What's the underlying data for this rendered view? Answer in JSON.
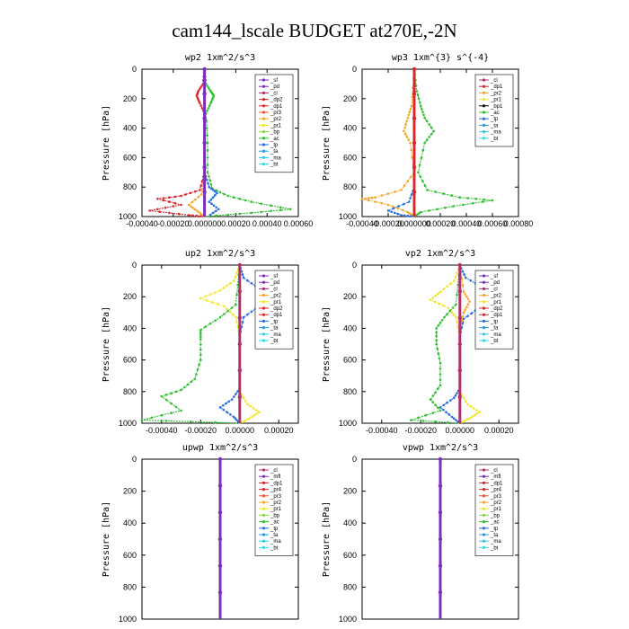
{
  "figure_title": "cam144_lscale  BUDGET at270E,-2N",
  "colors": {
    "sf": "#7b2fbe",
    "pd": "#7b2fbe",
    "cl": "#b0306c",
    "dp2": "#d8282e",
    "dp1": "#d8282e",
    "pr3": "#e8543a",
    "pr2": "#f7a62c",
    "pr1": "#f0e52a",
    "bp": "#8cd44a",
    "ac": "#2ec02e",
    "tp": "#2a6ee0",
    "ta": "#2a9ae0",
    "ma": "#30c8e8",
    "bt": "#30d8e8",
    "mfl": "#7b2fbe",
    "pr4": "#d8282e"
  },
  "chart_data": [
    {
      "id": "wp2",
      "type": "line",
      "title": "wp2  1xm^2/s^3",
      "ylabel": "Pressure [hPa]",
      "ylim": [
        1000,
        0
      ],
      "yticks": [
        0,
        200,
        400,
        600,
        800,
        1000
      ],
      "xlim": [
        -0.0004,
        0.0006
      ],
      "xticks": [
        -0.0004,
        -0.0002,
        0.0,
        0.0002,
        0.0004,
        0.0006
      ],
      "xticklabels": [
        "-0.00040",
        "-0.00020",
        "0.000000",
        "0.00020",
        "0.00040",
        "0.00060"
      ],
      "legend": [
        "sf",
        "pd",
        "cl",
        "dp2",
        "dp1",
        "pr3",
        "pr2",
        "pr1",
        "bp",
        "ac",
        "tp",
        "ta",
        "ma",
        "bt"
      ],
      "series": [
        {
          "key": "ac",
          "points": [
            [
              0,
              0
            ],
            [
              1e-05,
              100
            ],
            [
              4e-05,
              150
            ],
            [
              6e-05,
              180
            ],
            [
              4e-05,
              230
            ],
            [
              1e-05,
              300
            ],
            [
              2e-05,
              500
            ],
            [
              2e-05,
              700
            ],
            [
              5e-05,
              810
            ],
            [
              0.00015,
              860
            ],
            [
              0.0003,
              900
            ],
            [
              0.00055,
              950
            ],
            [
              0.0003,
              975
            ],
            [
              0,
              1000
            ]
          ]
        },
        {
          "key": "dp1",
          "points": [
            [
              0,
              0
            ],
            [
              -1e-05,
              100
            ],
            [
              -4e-05,
              150
            ],
            [
              -5e-05,
              180
            ],
            [
              -3e-05,
              230
            ],
            [
              0,
              300
            ],
            [
              0,
              700
            ],
            [
              -3e-05,
              820
            ],
            [
              -0.00015,
              860
            ],
            [
              -0.0003,
              880
            ],
            [
              -0.00015,
              920
            ],
            [
              -0.00035,
              960
            ],
            [
              -0.0001,
              990
            ],
            [
              0,
              1000
            ]
          ]
        },
        {
          "key": "pr2",
          "points": [
            [
              0,
              0
            ],
            [
              0,
              700
            ],
            [
              -2e-05,
              850
            ],
            [
              -0.0001,
              920
            ],
            [
              -5e-05,
              960
            ],
            [
              0,
              1000
            ]
          ]
        },
        {
          "key": "tp",
          "points": [
            [
              0,
              0
            ],
            [
              0,
              700
            ],
            [
              3e-05,
              800
            ],
            [
              8e-05,
              840
            ],
            [
              3e-05,
              900
            ],
            [
              9e-05,
              950
            ],
            [
              2e-05,
              1000
            ]
          ]
        },
        {
          "key": "sf",
          "points": [
            [
              0,
              0
            ],
            [
              0,
              1000
            ]
          ],
          "thick": true
        }
      ]
    },
    {
      "id": "wp3",
      "type": "line",
      "title": "wp3  1xm^{3} s^{-4}",
      "ylabel": "Pressure [hPa]",
      "ylim": [
        1000,
        0
      ],
      "yticks": [
        0,
        200,
        400,
        600,
        800,
        1000
      ],
      "xlim": [
        -0.0004,
        0.0008
      ],
      "xticks": [
        -0.0004,
        -0.0002,
        0.0,
        0.0002,
        0.0004,
        0.0006,
        0.0008
      ],
      "xticklabels": [
        "-0.00040",
        "-0.00020",
        "0.000000",
        "0.00020",
        "0.00040",
        "0.00060",
        "0.00080"
      ],
      "legend": [
        "cl",
        "dp1",
        "pr2",
        "pr1",
        "bp1",
        "ac",
        "tp",
        "ta",
        "ma",
        "bt"
      ],
      "series": [
        {
          "key": "ac",
          "points": [
            [
              0,
              0
            ],
            [
              2e-05,
              150
            ],
            [
              5e-05,
              250
            ],
            [
              8e-05,
              330
            ],
            [
              0.00015,
              420
            ],
            [
              8e-05,
              500
            ],
            [
              3e-05,
              700
            ],
            [
              0.0001,
              820
            ],
            [
              0.00035,
              870
            ],
            [
              0.0006,
              890
            ],
            [
              0.0003,
              930
            ],
            [
              5e-05,
              970
            ],
            [
              0,
              1000
            ]
          ]
        },
        {
          "key": "pr2",
          "points": [
            [
              0,
              0
            ],
            [
              -2e-05,
              250
            ],
            [
              -5e-05,
              330
            ],
            [
              -8e-05,
              420
            ],
            [
              -3e-05,
              500
            ],
            [
              0,
              700
            ],
            [
              -0.0001,
              820
            ],
            [
              -0.0003,
              870
            ],
            [
              -0.0004,
              880
            ],
            [
              -0.0002,
              920
            ],
            [
              -5e-05,
              970
            ],
            [
              0,
              1000
            ]
          ]
        },
        {
          "key": "tp",
          "points": [
            [
              0,
              0
            ],
            [
              0,
              800
            ],
            [
              -4e-05,
              900
            ],
            [
              -0.0002,
              960
            ],
            [
              -0.0001,
              990
            ],
            [
              0,
              1000
            ]
          ]
        },
        {
          "key": "dp1",
          "points": [
            [
              0,
              0
            ],
            [
              0,
              1000
            ]
          ],
          "thick": true
        }
      ]
    },
    {
      "id": "up2",
      "type": "line",
      "title": "up2  1xm^2/s^3",
      "ylabel": "Pressure [hPa]",
      "ylim": [
        1000,
        0
      ],
      "yticks": [
        0,
        200,
        400,
        600,
        800,
        1000
      ],
      "xlim": [
        -0.0005,
        0.0003
      ],
      "xticks": [
        -0.0004,
        -0.0002,
        0.0,
        0.0002
      ],
      "xticklabels": [
        "-0.00040",
        "-0.00020",
        "0.00000",
        "0.00020"
      ],
      "legend": [
        "sf",
        "pd",
        "cl",
        "pr2",
        "pr1",
        "dp2",
        "dp1",
        "tp",
        "ta",
        "ma",
        "bt"
      ],
      "series": [
        {
          "key": "pr1",
          "points": [
            [
              0,
              0
            ],
            [
              -3e-05,
              100
            ],
            [
              -0.0001,
              160
            ],
            [
              -0.0002,
              210
            ],
            [
              -8e-05,
              260
            ],
            [
              -2e-05,
              330
            ],
            [
              0,
              450
            ],
            [
              0,
              800
            ],
            [
              4e-05,
              880
            ],
            [
              0.0001,
              930
            ],
            [
              5e-05,
              970
            ],
            [
              0,
              1000
            ]
          ]
        },
        {
          "key": "tp",
          "points": [
            [
              0,
              0
            ],
            [
              2e-05,
              80
            ],
            [
              0.0001,
              150
            ],
            [
              0.00025,
              200
            ],
            [
              0.0001,
              260
            ],
            [
              2e-05,
              330
            ],
            [
              0,
              450
            ],
            [
              0,
              780
            ],
            [
              -4e-05,
              850
            ],
            [
              -0.0001,
              900
            ],
            [
              -3e-05,
              960
            ],
            [
              0,
              1000
            ]
          ]
        },
        {
          "key": "ac",
          "points": [
            [
              0,
              0
            ],
            [
              -2e-05,
              250
            ],
            [
              -0.0001,
              330
            ],
            [
              -0.0002,
              410
            ],
            [
              -0.0002,
              470
            ],
            [
              -0.0002,
              600
            ],
            [
              -0.00023,
              720
            ],
            [
              -0.0003,
              790
            ],
            [
              -0.0004,
              830
            ],
            [
              -0.0003,
              920
            ],
            [
              -0.0005,
              980
            ],
            [
              0,
              1000
            ]
          ]
        },
        {
          "key": "cl",
          "points": [
            [
              0,
              0
            ],
            [
              0,
              1000
            ]
          ],
          "thick": true
        }
      ]
    },
    {
      "id": "vp2",
      "type": "line",
      "title": "vp2  1xm^2/s^3",
      "ylabel": "Pressure [hPa]",
      "ylim": [
        1000,
        0
      ],
      "yticks": [
        0,
        200,
        400,
        600,
        800,
        1000
      ],
      "xlim": [
        -0.0005,
        0.0003
      ],
      "xticks": [
        -0.0004,
        -0.0002,
        0.0,
        0.0002
      ],
      "xticklabels": [
        "-0.00040",
        "-0.00020",
        "0.00000",
        "0.00020"
      ],
      "legend": [
        "sf",
        "pd",
        "cl",
        "pr2",
        "pr1",
        "dp2",
        "dp1",
        "tp",
        "ta",
        "ma",
        "bt"
      ],
      "series": [
        {
          "key": "tp",
          "points": [
            [
              0,
              0
            ],
            [
              3e-05,
              80
            ],
            [
              0.00013,
              150
            ],
            [
              0.00022,
              210
            ],
            [
              0.0001,
              270
            ],
            [
              2e-05,
              340
            ],
            [
              0,
              450
            ],
            [
              0,
              780
            ],
            [
              -3e-05,
              840
            ],
            [
              -0.0001,
              900
            ],
            [
              -4e-05,
              960
            ],
            [
              0,
              1000
            ]
          ]
        },
        {
          "key": "pr1",
          "points": [
            [
              0,
              0
            ],
            [
              -3e-05,
              100
            ],
            [
              -0.0001,
              170
            ],
            [
              -0.00015,
              220
            ],
            [
              -6e-05,
              270
            ],
            [
              -2e-05,
              330
            ],
            [
              0,
              450
            ],
            [
              0,
              800
            ],
            [
              4e-05,
              880
            ],
            [
              0.0001,
              930
            ],
            [
              5e-05,
              970
            ],
            [
              0,
              1000
            ]
          ]
        },
        {
          "key": "ac",
          "points": [
            [
              0,
              0
            ],
            [
              -2e-05,
              250
            ],
            [
              -8e-05,
              330
            ],
            [
              -0.00012,
              400
            ],
            [
              -0.00012,
              500
            ],
            [
              -0.0001,
              620
            ],
            [
              -0.0001,
              760
            ],
            [
              -0.00015,
              850
            ],
            [
              -0.0001,
              920
            ],
            [
              -0.00025,
              980
            ],
            [
              0,
              1000
            ]
          ]
        },
        {
          "key": "pr2",
          "points": [
            [
              0,
              0
            ],
            [
              2e-05,
              170
            ],
            [
              5e-05,
              230
            ],
            [
              2e-05,
              300
            ],
            [
              0,
              400
            ],
            [
              0,
              1000
            ]
          ]
        },
        {
          "key": "cl",
          "points": [
            [
              0,
              0
            ],
            [
              0,
              1000
            ]
          ],
          "thick": true
        }
      ]
    },
    {
      "id": "upwp",
      "type": "line",
      "title": "upwp  1xm^2/s^3",
      "ylabel": "Pressure [hPa]",
      "ylim": [
        1000,
        0
      ],
      "yticks": [
        0,
        200,
        400,
        600,
        800,
        1000
      ],
      "xlim": [
        -1.0,
        1.0
      ],
      "xticks": [],
      "xticklabels": [],
      "legend": [
        "cl",
        "mfl",
        "dp1",
        "pr4",
        "pr3",
        "pr2",
        "pr1",
        "bp",
        "ac",
        "tp",
        "ta",
        "ma",
        "bt"
      ],
      "series": [
        {
          "key": "mfl",
          "points": [
            [
              0,
              0
            ],
            [
              0,
              1000
            ]
          ],
          "thick": true
        }
      ]
    },
    {
      "id": "vpwp",
      "type": "line",
      "title": "vpwp  1xm^2/s^3",
      "ylabel": "Pressure [hPa]",
      "ylim": [
        1000,
        0
      ],
      "yticks": [
        0,
        200,
        400,
        600,
        800,
        1000
      ],
      "xlim": [
        -1.0,
        1.0
      ],
      "xticks": [],
      "xticklabels": [],
      "legend": [
        "cl",
        "mfl",
        "dp1",
        "pr4",
        "pr3",
        "pr2",
        "pr1",
        "bp",
        "ac",
        "tp",
        "ta",
        "ma",
        "bt"
      ],
      "series": [
        {
          "key": "mfl",
          "points": [
            [
              0,
              0
            ],
            [
              0,
              1000
            ]
          ],
          "thick": true
        }
      ]
    }
  ]
}
